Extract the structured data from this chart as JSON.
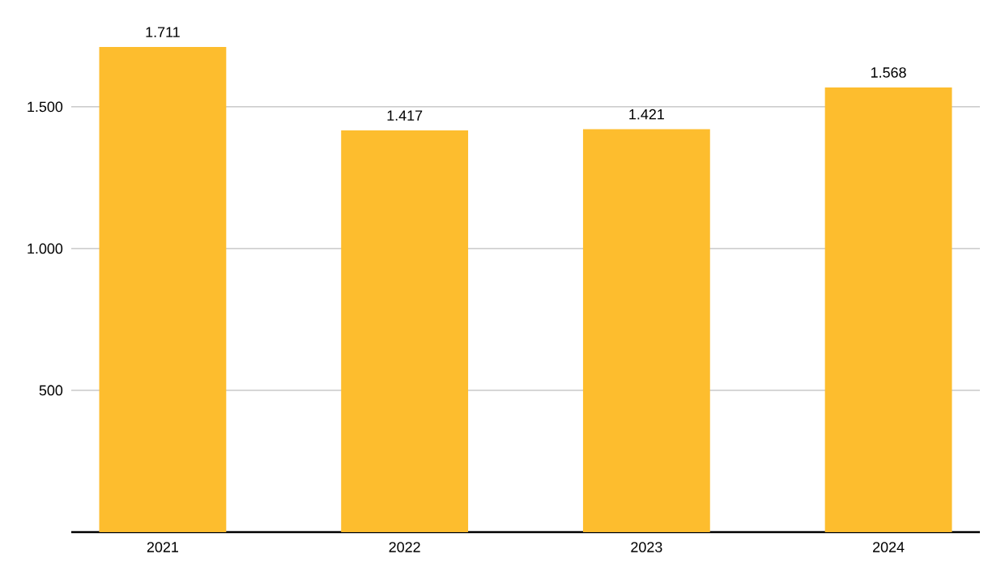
{
  "chart_data": {
    "type": "bar",
    "categories": [
      "2021",
      "2022",
      "2023",
      "2024"
    ],
    "values": [
      1711,
      1417,
      1421,
      1568
    ],
    "value_labels": [
      "1.711",
      "1.417",
      "1.421",
      "1.568"
    ],
    "color": "#fdbd2e",
    "ylim": [
      0,
      1711
    ],
    "yticks": [
      {
        "value": 500,
        "label": "500"
      },
      {
        "value": 1000,
        "label": "1.000"
      },
      {
        "value": 1500,
        "label": "1.500"
      }
    ],
    "grid": "y"
  }
}
